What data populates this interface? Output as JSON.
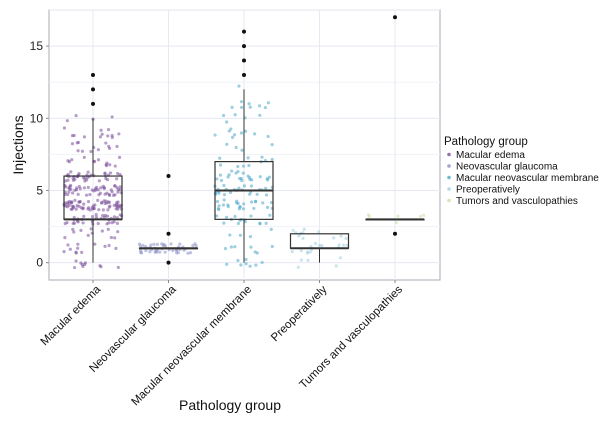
{
  "chart_data": {
    "type": "box",
    "title": "",
    "xlabel": "Pathology group",
    "ylabel": "Injections",
    "ylim": [
      -1.2,
      17.5
    ],
    "yticks": [
      0,
      5,
      10,
      15
    ],
    "grid": true,
    "categories": [
      "Macular edema",
      "Neovascular glaucoma",
      "Macular neovascular membrane",
      "Preoperatively",
      "Tumors and vasculopathies"
    ],
    "colors": [
      "#7a4f9a",
      "#8a90c8",
      "#4fa8c8",
      "#9fd0e0",
      "#c8e0a0"
    ],
    "boxes": [
      {
        "group": "Macular edema",
        "q1": 3,
        "median": 3,
        "q3": 6,
        "whisker_low": 0,
        "whisker_high": 10,
        "outliers": [
          11,
          12,
          13
        ]
      },
      {
        "group": "Neovascular glaucoma",
        "q1": 1,
        "median": 1,
        "q3": 1,
        "whisker_low": 1,
        "whisker_high": 1,
        "outliers": [
          0,
          2,
          6
        ]
      },
      {
        "group": "Macular neovascular membrane",
        "q1": 3,
        "median": 5,
        "q3": 7,
        "whisker_low": 0,
        "whisker_high": 12,
        "outliers": [
          13,
          14,
          15,
          16
        ]
      },
      {
        "group": "Preoperatively",
        "q1": 1,
        "median": 1,
        "q3": 2,
        "whisker_low": 0,
        "whisker_high": 2,
        "outliers": []
      },
      {
        "group": "Tumors and vasculopathies",
        "q1": 3,
        "median": 3,
        "q3": 3,
        "whisker_low": 3,
        "whisker_high": 3,
        "outliers": [
          2,
          17
        ]
      }
    ],
    "jitter_counts": [
      260,
      45,
      140,
      30,
      6
    ],
    "legend": {
      "title": "Pathology group",
      "position": "right",
      "items": [
        "Macular edema",
        "Neovascular glaucoma",
        "Macular neovascular membrane",
        "Preoperatively",
        "Tumors and vasculopathies"
      ]
    }
  }
}
